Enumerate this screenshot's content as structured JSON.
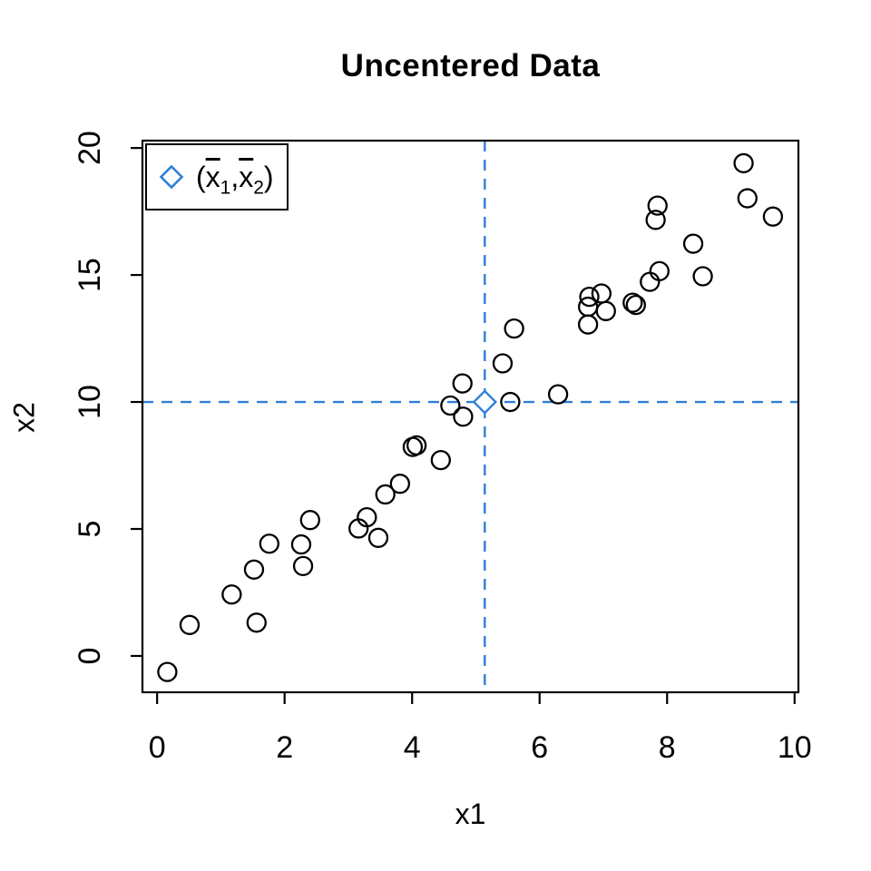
{
  "title": "Uncentered Data",
  "axes": {
    "x_label": "x1",
    "y_label": "x2"
  },
  "legend": {
    "paren_open": "(",
    "x_var": "x",
    "sub1": "1",
    "comma": ",",
    "sub2": "2",
    "paren_close": ")",
    "label_plain": "(x̄1,x̄2)"
  },
  "colors": {
    "accent_blue": "#2E7FD8",
    "point_stroke": "#000000",
    "background": "#FFFFFF"
  },
  "chart_data": {
    "type": "scatter",
    "title": "Uncentered Data",
    "xlabel": "x1",
    "ylabel": "x2",
    "xlim": [
      -0.23,
      10.06
    ],
    "ylim": [
      -1.43,
      20.29
    ],
    "x_ticks": [
      0,
      2,
      4,
      6,
      8,
      10
    ],
    "y_ticks": [
      0,
      5,
      10,
      15,
      20
    ],
    "grid": false,
    "marker": "open-circle",
    "points": [
      [
        0.16,
        -0.63
      ],
      [
        0.51,
        1.22
      ],
      [
        1.17,
        2.42
      ],
      [
        1.52,
        3.4
      ],
      [
        1.56,
        1.31
      ],
      [
        1.76,
        4.42
      ],
      [
        2.26,
        4.39
      ],
      [
        2.29,
        3.54
      ],
      [
        2.4,
        5.35
      ],
      [
        3.16,
        5.02
      ],
      [
        3.29,
        5.46
      ],
      [
        3.47,
        4.65
      ],
      [
        3.58,
        6.36
      ],
      [
        3.81,
        6.78
      ],
      [
        4.01,
        8.23
      ],
      [
        4.07,
        8.29
      ],
      [
        4.45,
        7.71
      ],
      [
        4.6,
        9.86
      ],
      [
        4.79,
        10.73
      ],
      [
        4.8,
        9.42
      ],
      [
        5.42,
        11.52
      ],
      [
        5.54,
        10.0
      ],
      [
        5.6,
        12.89
      ],
      [
        6.29,
        10.3
      ],
      [
        6.76,
        13.05
      ],
      [
        6.76,
        13.75
      ],
      [
        6.78,
        14.14
      ],
      [
        6.97,
        14.27
      ],
      [
        7.04,
        13.58
      ],
      [
        7.46,
        13.91
      ],
      [
        7.51,
        13.82
      ],
      [
        7.73,
        14.73
      ],
      [
        7.82,
        17.17
      ],
      [
        7.85,
        17.73
      ],
      [
        7.88,
        15.15
      ],
      [
        8.41,
        16.23
      ],
      [
        8.56,
        14.95
      ],
      [
        9.2,
        19.4
      ],
      [
        9.26,
        18.02
      ],
      [
        9.66,
        17.3
      ]
    ],
    "mean_point": [
      5.14,
      10.0
    ],
    "crosshair": {
      "style": "dashed",
      "x": 5.14,
      "y": 10.0
    },
    "legend": {
      "position": "top-left",
      "marker": "open-diamond",
      "label": "(x̄1,x̄2)"
    }
  }
}
